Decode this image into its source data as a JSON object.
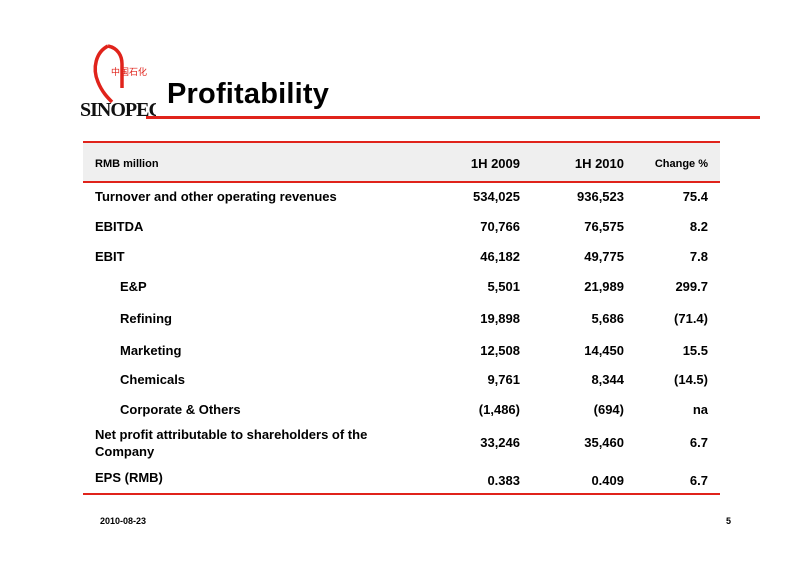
{
  "logo": {
    "name": "sinopec-logo",
    "text": "SINOPEC",
    "chinese": "中国石化",
    "color": "#e0231b"
  },
  "title": "Profitability",
  "table": {
    "header": {
      "label": "RMB million",
      "col1": "1H 2009",
      "col2": "1H 2010",
      "col3": "Change %"
    },
    "rows": [
      {
        "label": "Turnover and other operating revenues",
        "v1": "534,025",
        "v2": "936,523",
        "v3": "75.4"
      },
      {
        "label": "EBITDA",
        "v1": "70,766",
        "v2": "76,575",
        "v3": "8.2"
      },
      {
        "label": "EBIT",
        "v1": "46,182",
        "v2": "49,775",
        "v3": "7.8"
      },
      {
        "label": "E&P",
        "v1": "5,501",
        "v2": "21,989",
        "v3": "299.7"
      },
      {
        "label": "Refining",
        "v1": "19,898",
        "v2": "5,686",
        "v3": "(71.4)"
      },
      {
        "label": "Marketing",
        "v1": "12,508",
        "v2": "14,450",
        "v3": "15.5"
      },
      {
        "label": "Chemicals",
        "v1": "9,761",
        "v2": "8,344",
        "v3": "(14.5)"
      },
      {
        "label": "Corporate & Others",
        "v1": "(1,486)",
        "v2": "(694)",
        "v3": "na"
      },
      {
        "label_line1": "Net profit attributable to shareholders of the",
        "label_line2": "Company",
        "v1": "33,246",
        "v2": "35,460",
        "v3": "6.7"
      },
      {
        "label": "EPS (RMB)",
        "v1": "0.383",
        "v2": "0.409",
        "v3": "6.7"
      }
    ]
  },
  "footer": {
    "date": "2010-08-23",
    "page": "5"
  }
}
